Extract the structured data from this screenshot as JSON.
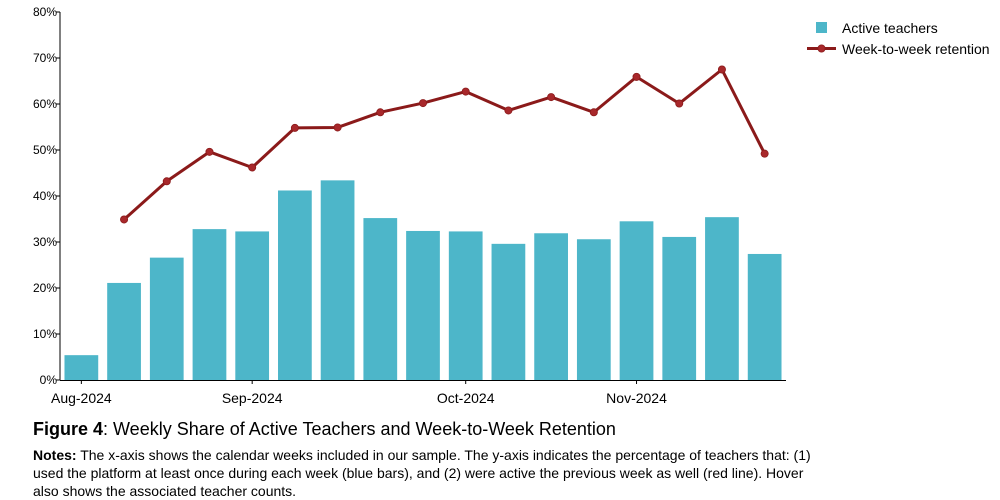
{
  "chart_data": {
    "type": "bar",
    "ylim": [
      0,
      80
    ],
    "ytick_values": [
      0,
      10,
      20,
      30,
      40,
      50,
      60,
      70,
      80
    ],
    "ytick_labels": [
      "0%",
      "10%",
      "20%",
      "30%",
      "40%",
      "50%",
      "60%",
      "70%",
      "80%"
    ],
    "xtick_positions": [
      0.5,
      4.5,
      9.5,
      13.5
    ],
    "xtick_labels": [
      "Aug-2024",
      "Sep-2024",
      "Oct-2024",
      "Nov-2024"
    ],
    "legend_position": "top-right",
    "grid": false,
    "series": [
      {
        "name": "Active teachers",
        "type": "bar",
        "color": "#4db6c9",
        "values": [
          5.4,
          21.1,
          26.6,
          32.8,
          32.3,
          41.2,
          43.4,
          35.2,
          32.4,
          32.3,
          29.6,
          31.9,
          30.6,
          34.5,
          31.1,
          35.4,
          27.4
        ]
      },
      {
        "name": "Week-to-week retention",
        "type": "line",
        "color": "#8b1a1a",
        "values": [
          null,
          34.9,
          43.2,
          49.6,
          46.2,
          54.8,
          54.9,
          58.2,
          60.2,
          62.7,
          58.6,
          61.5,
          58.2,
          65.9,
          60.1,
          67.5,
          49.2
        ]
      }
    ]
  },
  "caption": {
    "figure_label": "Figure 4",
    "title_text": ": Weekly Share of Active Teachers and Week-to-Week Retention",
    "notes_label": "Notes:",
    "notes_text": " The x-axis shows the calendar weeks included in our sample. The y-axis indicates the percentage of teachers that: (1) used the platform at least once during each week (blue bars), and (2) were active the previous week as well (red line). Hover also shows the associated teacher counts."
  }
}
